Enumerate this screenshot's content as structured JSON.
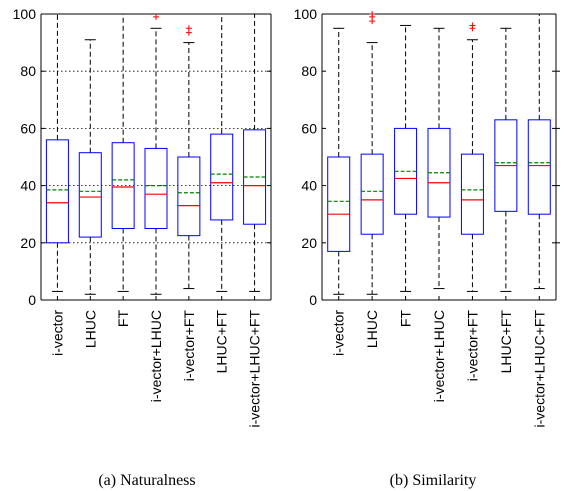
{
  "chart_data": [
    {
      "type": "box",
      "caption": "(a)  Naturalness",
      "ylim": [
        0,
        100
      ],
      "yticks": [
        0,
        20,
        40,
        60,
        80,
        100
      ],
      "grid": "horizontal dotted",
      "categories": [
        "i-vector",
        "LHUC",
        "FT",
        "i-vector+LHUC",
        "i-vector+FT",
        "LHUC+FT",
        "i-vector+LHUC+FT"
      ],
      "boxes": [
        {
          "whisker_low": 3,
          "q1": 20,
          "median": 34,
          "mean": 38.5,
          "q3": 56,
          "whisker_high": 100,
          "outliers": []
        },
        {
          "whisker_low": 2,
          "q1": 22,
          "median": 36,
          "mean": 38,
          "q3": 51.5,
          "whisker_high": 91,
          "outliers": []
        },
        {
          "whisker_low": 3,
          "q1": 25,
          "median": 39.5,
          "mean": 42,
          "q3": 55,
          "whisker_high": 100,
          "outliers": []
        },
        {
          "whisker_low": 2,
          "q1": 25,
          "median": 37,
          "mean": 40,
          "q3": 53,
          "whisker_high": 95,
          "outliers": [
            99
          ]
        },
        {
          "whisker_low": 4,
          "q1": 22.5,
          "median": 33,
          "mean": 37.5,
          "q3": 50,
          "whisker_high": 90,
          "outliers": [
            93.5,
            95
          ]
        },
        {
          "whisker_low": 3,
          "q1": 28,
          "median": 41,
          "mean": 44,
          "q3": 58,
          "whisker_high": 100,
          "outliers": []
        },
        {
          "whisker_low": 3,
          "q1": 26.5,
          "median": 40,
          "mean": 43,
          "q3": 59.5,
          "whisker_high": 100,
          "outliers": []
        }
      ]
    },
    {
      "type": "box",
      "caption": "(b)  Similarity",
      "ylim": [
        0,
        100
      ],
      "yticks": [
        0,
        20,
        40,
        60,
        80,
        100
      ],
      "grid": "none",
      "categories": [
        "i-vector",
        "LHUC",
        "FT",
        "i-vector+LHUC",
        "i-vector+FT",
        "LHUC+FT",
        "i-vector+LHUC+FT"
      ],
      "boxes": [
        {
          "whisker_low": 2,
          "q1": 17,
          "median": 30,
          "mean": 34.5,
          "q3": 50,
          "whisker_high": 95,
          "outliers": []
        },
        {
          "whisker_low": 2,
          "q1": 23,
          "median": 35,
          "mean": 38,
          "q3": 51,
          "whisker_high": 90,
          "outliers": [
            97.5,
            99,
            100
          ]
        },
        {
          "whisker_low": 3,
          "q1": 30,
          "median": 42.5,
          "mean": 45,
          "q3": 60,
          "whisker_high": 96,
          "outliers": []
        },
        {
          "whisker_low": 4,
          "q1": 29,
          "median": 41,
          "mean": 44.5,
          "q3": 60,
          "whisker_high": 95,
          "outliers": []
        },
        {
          "whisker_low": 3,
          "q1": 23,
          "median": 35,
          "mean": 38.5,
          "q3": 51,
          "whisker_high": 91,
          "outliers": [
            95,
            96
          ]
        },
        {
          "whisker_low": 3,
          "q1": 31,
          "median": 47,
          "mean": 48,
          "q3": 63,
          "whisker_high": 95,
          "outliers": []
        },
        {
          "whisker_low": 4,
          "q1": 30,
          "median": 47,
          "mean": 48,
          "q3": 63,
          "whisker_high": 100,
          "outliers": []
        }
      ]
    }
  ],
  "colors": {
    "box": "#0000ff",
    "median": "#ff0000",
    "mean": "#008000",
    "whisker": "#000000",
    "outlier": "#ff0000",
    "grid": "#000000"
  }
}
